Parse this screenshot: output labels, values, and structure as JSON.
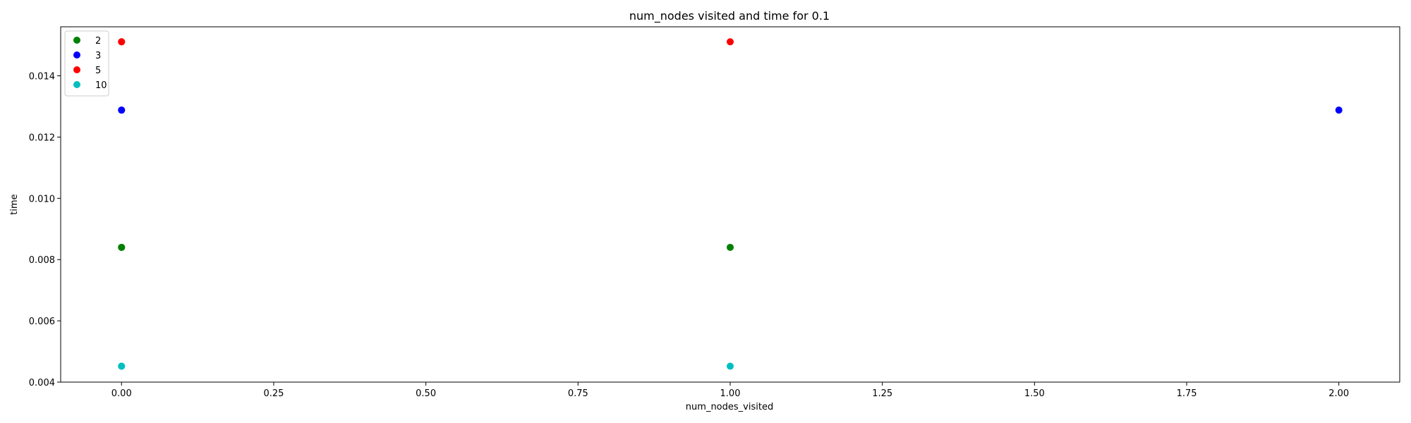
{
  "chart_data": {
    "type": "scatter",
    "title": "num_nodes visited and time for 0.1",
    "xlabel": "num_nodes_visited",
    "ylabel": "time",
    "xlim": [
      -0.1,
      2.1
    ],
    "ylim": [
      0.004,
      0.0156
    ],
    "x_ticks": [
      0.0,
      0.25,
      0.5,
      0.75,
      1.0,
      1.25,
      1.5,
      1.75,
      2.0
    ],
    "x_tick_labels": [
      "0.00",
      "0.25",
      "0.50",
      "0.75",
      "1.00",
      "1.25",
      "1.50",
      "1.75",
      "2.00"
    ],
    "y_ticks": [
      0.004,
      0.006,
      0.008,
      0.01,
      0.012,
      0.014
    ],
    "y_tick_labels": [
      "0.004",
      "0.006",
      "0.008",
      "0.010",
      "0.012",
      "0.014"
    ],
    "grid": false,
    "legend_position": "top-left",
    "series": [
      {
        "name": "2",
        "color": "#008000",
        "points": [
          {
            "x": 0,
            "y": 0.0084
          },
          {
            "x": 0,
            "y": 0.0084
          },
          {
            "x": 1,
            "y": 0.0084
          }
        ]
      },
      {
        "name": "3",
        "color": "#0000ff",
        "points": [
          {
            "x": 0,
            "y": 0.01288
          },
          {
            "x": 0,
            "y": 0.01288
          },
          {
            "x": 2,
            "y": 0.01288
          }
        ]
      },
      {
        "name": "5",
        "color": "#ff0000",
        "points": [
          {
            "x": 0,
            "y": 0.01511
          },
          {
            "x": 0,
            "y": 0.01511
          },
          {
            "x": 1,
            "y": 0.01511
          }
        ]
      },
      {
        "name": "10",
        "color": "#00bfbf",
        "points": [
          {
            "x": 0,
            "y": 0.00452
          },
          {
            "x": 0,
            "y": 0.00452
          },
          {
            "x": 1,
            "y": 0.00452
          }
        ]
      }
    ]
  }
}
